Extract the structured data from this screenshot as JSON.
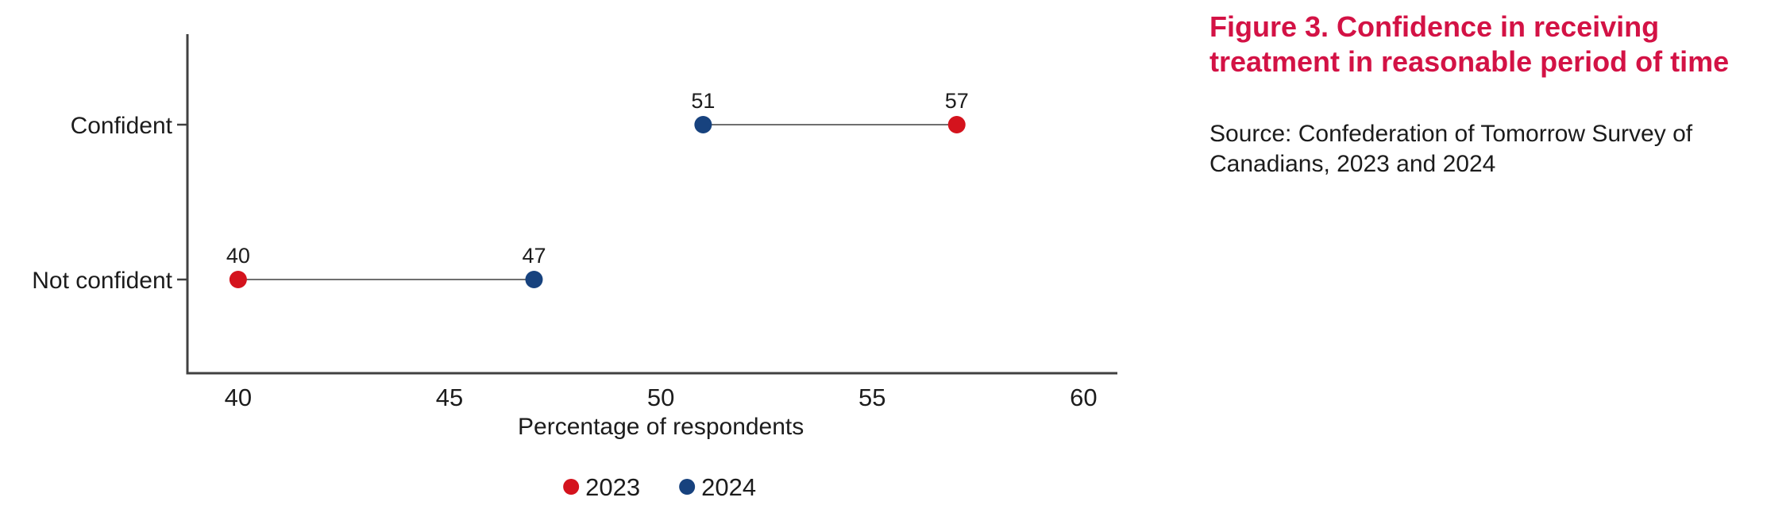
{
  "figure": {
    "title_lines": [
      "Figure 3. Confidence in receiving",
      "treatment in reasonable period of time"
    ],
    "title_color": "#D31245",
    "source_lines": [
      "Source: Confederation of Tomorrow Survey of",
      "Canadians, 2023 and 2024"
    ],
    "source_color": "#1C1C1C"
  },
  "chart_data": {
    "type": "scatter",
    "variant": "dumbbell-dot-plot",
    "orientation": "horizontal",
    "title": "Figure 3. Confidence in receiving treatment in reasonable period of time",
    "categories": [
      "Confident",
      "Not confident"
    ],
    "series": [
      {
        "name": "2023",
        "color": "#D4131D",
        "values": [
          57,
          40
        ]
      },
      {
        "name": "2024",
        "color": "#17427E",
        "values": [
          51,
          47
        ]
      }
    ],
    "point_labels": [
      {
        "category": "Confident",
        "2023": 57,
        "2024": 51
      },
      {
        "category": "Not confident",
        "2023": 40,
        "2024": 47
      }
    ],
    "xlabel": "Percentage of respondents",
    "ylabel": "",
    "xlim": [
      38.8,
      60.8
    ],
    "xticks": [
      40,
      45,
      50,
      55,
      60
    ],
    "grid": false,
    "legend": {
      "position": "bottom-center",
      "entries": [
        "2023",
        "2024"
      ]
    },
    "axis_color": "#404040",
    "connector_color": "#6F6F6F",
    "text_color": "#1C1C1C"
  }
}
